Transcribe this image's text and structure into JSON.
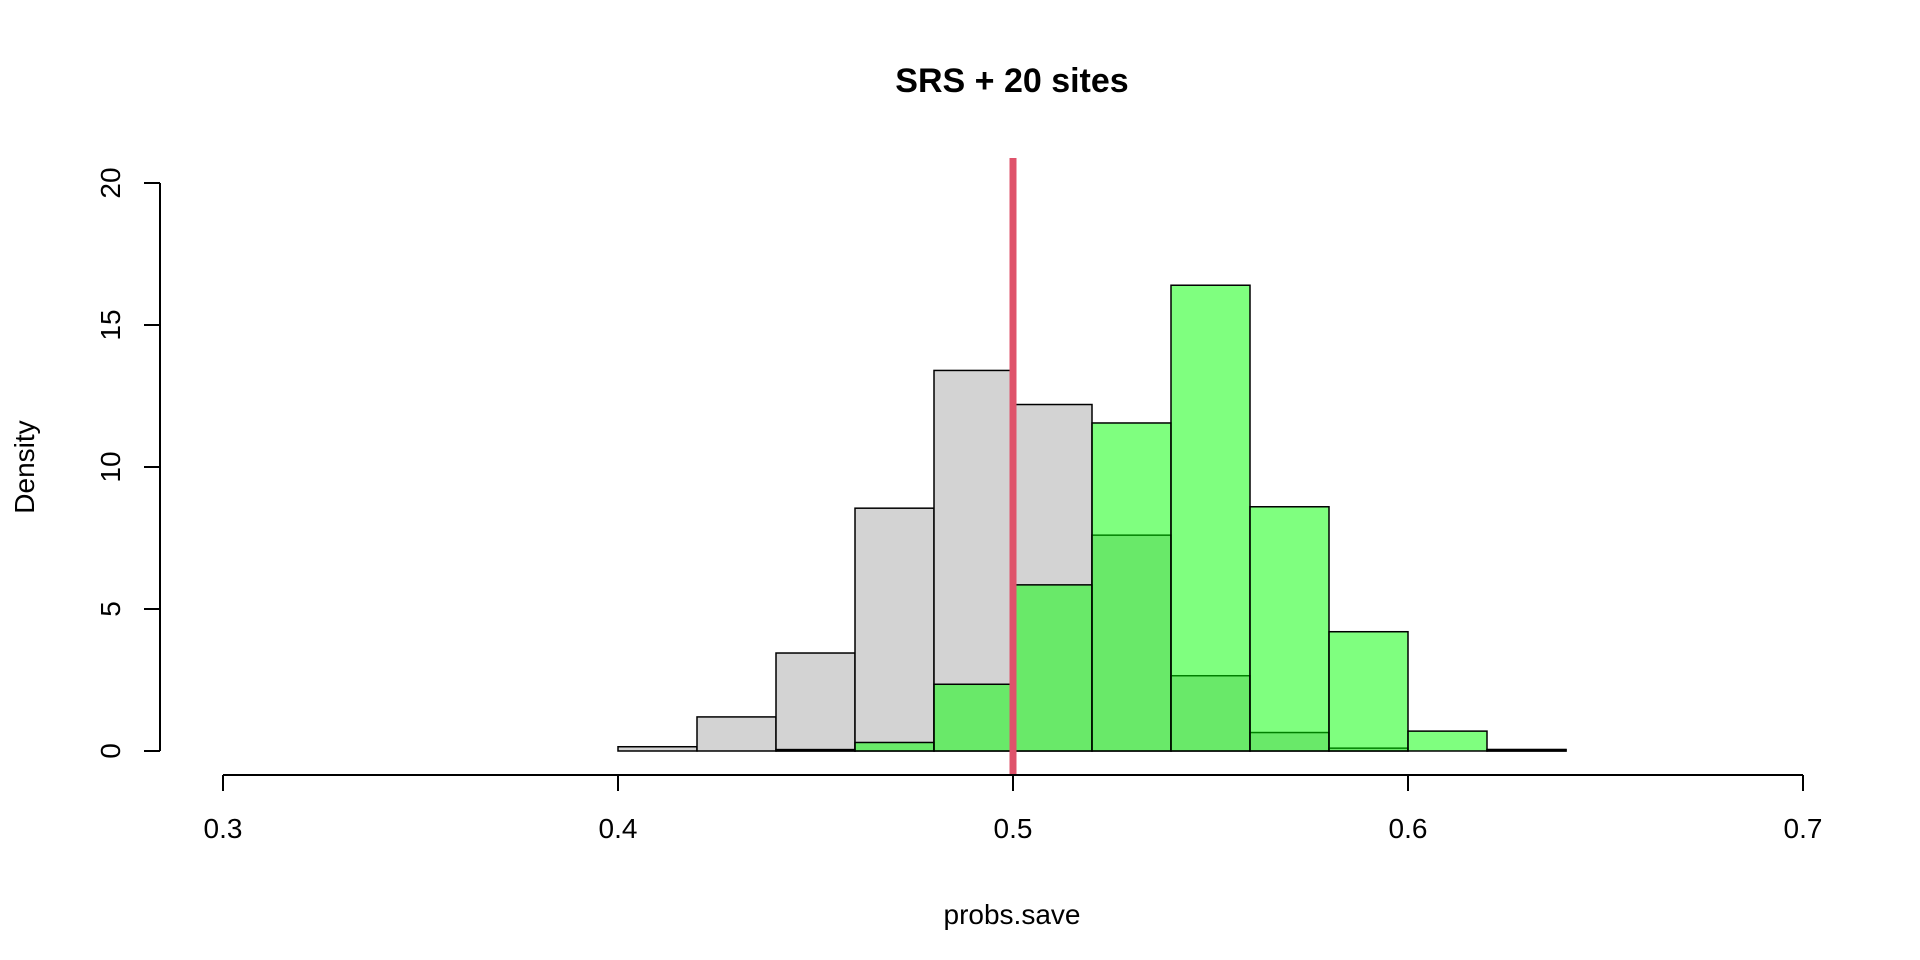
{
  "chart_data": {
    "type": "bar",
    "subtype": "overlaid-histogram",
    "title": "SRS + 20 sites",
    "xlabel": "probs.save",
    "ylabel": "Density",
    "xlim": [
      0.3,
      0.7
    ],
    "ylim": [
      0,
      20
    ],
    "x_ticks": [
      "0.3",
      "0.4",
      "0.5",
      "0.6",
      "0.7"
    ],
    "y_ticks": [
      "0",
      "5",
      "10",
      "15",
      "20"
    ],
    "bin_width": 0.02,
    "grid": false,
    "legend": "none",
    "series": [
      {
        "color": "#d3d3d3",
        "bins": [
          {
            "x0": 0.4,
            "x1": 0.42,
            "y": 0.15
          },
          {
            "x0": 0.42,
            "x1": 0.44,
            "y": 1.2
          },
          {
            "x0": 0.44,
            "x1": 0.46,
            "y": 3.45
          },
          {
            "x0": 0.46,
            "x1": 0.48,
            "y": 8.55
          },
          {
            "x0": 0.48,
            "x1": 0.5,
            "y": 13.4
          },
          {
            "x0": 0.5,
            "x1": 0.52,
            "y": 12.2
          },
          {
            "x0": 0.52,
            "x1": 0.54,
            "y": 7.6
          },
          {
            "x0": 0.54,
            "x1": 0.56,
            "y": 2.65
          },
          {
            "x0": 0.56,
            "x1": 0.58,
            "y": 0.65
          },
          {
            "x0": 0.58,
            "x1": 0.6,
            "y": 0.1
          },
          {
            "x0": 0.6,
            "x1": 0.62,
            "y": 0.0
          },
          {
            "x0": 0.62,
            "x1": 0.64,
            "y": 0.05
          }
        ]
      },
      {
        "color": "#00ff0080",
        "bins": [
          {
            "x0": 0.44,
            "x1": 0.46,
            "y": 0.05
          },
          {
            "x0": 0.46,
            "x1": 0.48,
            "y": 0.3
          },
          {
            "x0": 0.48,
            "x1": 0.5,
            "y": 2.35
          },
          {
            "x0": 0.5,
            "x1": 0.52,
            "y": 5.85
          },
          {
            "x0": 0.52,
            "x1": 0.54,
            "y": 11.55
          },
          {
            "x0": 0.54,
            "x1": 0.56,
            "y": 16.4
          },
          {
            "x0": 0.56,
            "x1": 0.58,
            "y": 8.6
          },
          {
            "x0": 0.58,
            "x1": 0.6,
            "y": 4.2
          },
          {
            "x0": 0.6,
            "x1": 0.62,
            "y": 0.7
          },
          {
            "x0": 0.62,
            "x1": 0.64,
            "y": 0.05
          }
        ]
      }
    ],
    "reference_line": {
      "x": 0.5,
      "color": "#df536b",
      "orientation": "vertical"
    }
  }
}
